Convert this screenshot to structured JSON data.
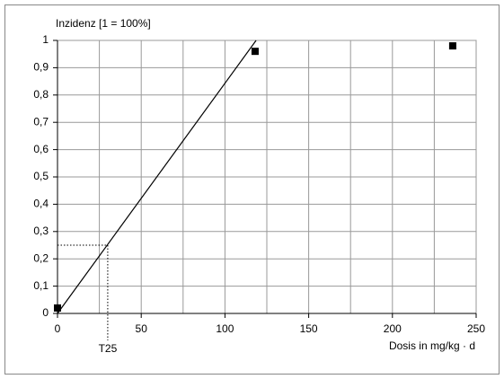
{
  "chart_data": {
    "type": "scatter",
    "ylabel": "Inzidenz [1 = 100%]",
    "xlabel": "Dosis in mg/kg · d",
    "series": [
      {
        "x": [
          0,
          118,
          236
        ],
        "values": [
          0.02,
          0.96,
          0.98
        ],
        "color": "#000000"
      }
    ],
    "fit_line": {
      "x": [
        0,
        118.6
      ],
      "y": [
        0,
        1
      ],
      "color": "#000000"
    },
    "marker": {
      "label": "T25",
      "x": 30,
      "y": 0.25
    },
    "xlim": [
      0,
      250
    ],
    "xticks": [
      0,
      50,
      100,
      150,
      200,
      250
    ],
    "xminorticks": [
      25,
      75,
      125,
      175,
      225
    ],
    "ylim": [
      0,
      1
    ],
    "yticks": [
      0,
      {
        "value": 0.1,
        "label": "0,1"
      },
      {
        "value": 0.2,
        "label": "0,2"
      },
      {
        "value": 0.3,
        "label": "0,3"
      },
      {
        "value": 0.4,
        "label": "0,4"
      },
      {
        "value": 0.5,
        "label": "0,5"
      },
      {
        "value": 0.6,
        "label": "0,6"
      },
      {
        "value": 0.7,
        "label": "0,7"
      },
      {
        "value": 0.8,
        "label": "0,8"
      },
      {
        "value": 0.9,
        "label": "0,9"
      },
      1
    ],
    "grid": true
  }
}
